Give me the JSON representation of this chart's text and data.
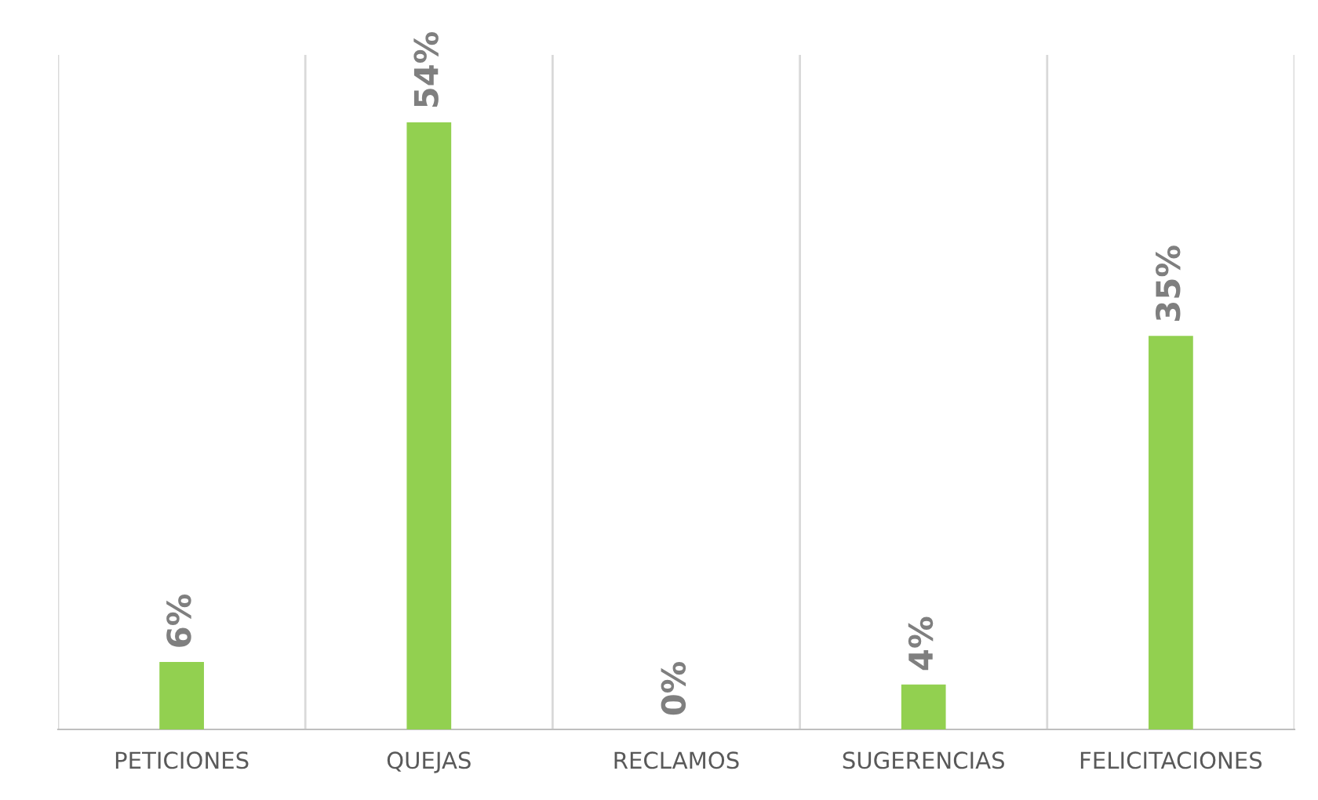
{
  "chart_data": {
    "type": "bar",
    "categories": [
      "PETICIONES",
      "QUEJAS",
      "RECLAMOS",
      "SUGERENCIAS",
      "FELICITACIONES"
    ],
    "values": [
      6,
      54,
      0,
      4,
      35
    ],
    "value_labels": [
      "6%",
      "54%",
      "0%",
      "4%",
      "35%"
    ],
    "color": "#92d050",
    "ylim": [
      0,
      60
    ],
    "relative": false,
    "grid": "x",
    "tick_labels": "x"
  }
}
